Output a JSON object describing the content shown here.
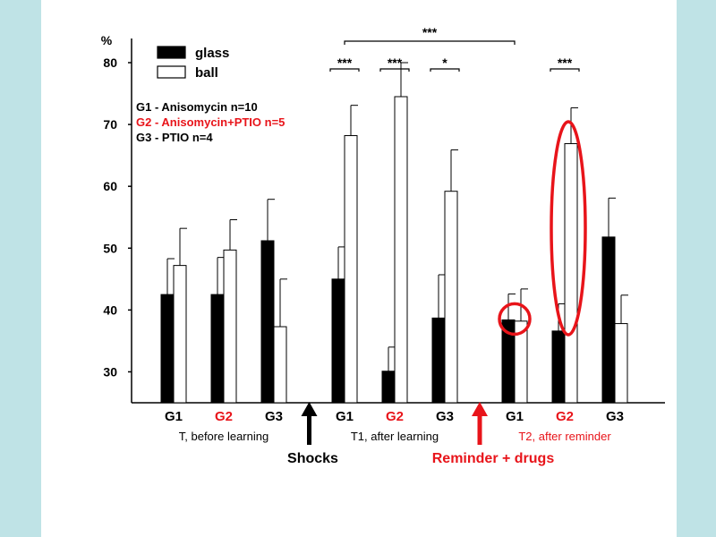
{
  "colors": {
    "background": "#bfe3e6",
    "panel": "#ffffff",
    "red": "#e8141a",
    "black": "#000000"
  },
  "chart_data": {
    "type": "bar",
    "ylabel": "%",
    "ylim": [
      25,
      80
    ],
    "yticks": [
      30,
      40,
      50,
      60,
      70,
      80
    ],
    "legend": [
      {
        "name": "glass",
        "fill": "black"
      },
      {
        "name": "ball",
        "fill": "white"
      }
    ],
    "info_lines": [
      {
        "text": "G1 - Anisomycin  n=10",
        "color": "black"
      },
      {
        "text": "G2 - Anisomycin+PTIO  n=5",
        "color": "red"
      },
      {
        "text": "G3 - PTIO  n=4",
        "color": "black"
      }
    ],
    "sessions": [
      {
        "name": "T, before learning",
        "color": "black",
        "groups": [
          {
            "label": "G1",
            "color": "black",
            "glass": 42.5,
            "glass_err": 5.8,
            "ball": 47.2,
            "ball_err": 6.0
          },
          {
            "label": "G2",
            "color": "red",
            "glass": 42.5,
            "glass_err": 6.0,
            "ball": 49.7,
            "ball_err": 4.9
          },
          {
            "label": "G3",
            "color": "black",
            "glass": 51.2,
            "glass_err": 6.7,
            "ball": 37.3,
            "ball_err": 7.7
          }
        ]
      },
      {
        "name": "T1, after learning",
        "color": "black",
        "groups": [
          {
            "label": "G1",
            "color": "black",
            "glass": 45.0,
            "glass_err": 5.2,
            "ball": 68.2,
            "ball_err": 4.9
          },
          {
            "label": "G2",
            "color": "red",
            "glass": 30.1,
            "glass_err": 3.9,
            "ball": 74.5,
            "ball_err": 5.5
          },
          {
            "label": "G3",
            "color": "black",
            "glass": 38.7,
            "glass_err": 7.0,
            "ball": 59.2,
            "ball_err": 6.7
          }
        ]
      },
      {
        "name": "T2, after reminder",
        "color": "red",
        "groups": [
          {
            "label": "G1",
            "color": "black",
            "glass": 38.4,
            "glass_err": 4.2,
            "ball": 38.2,
            "ball_err": 5.2
          },
          {
            "label": "G2",
            "color": "red",
            "glass": 36.6,
            "glass_err": 4.4,
            "ball": 66.9,
            "ball_err": 5.8
          },
          {
            "label": "G3",
            "color": "black",
            "glass": 51.8,
            "glass_err": 6.3,
            "ball": 37.8,
            "ball_err": 4.6
          }
        ]
      }
    ],
    "significance": [
      {
        "label": "***",
        "session": 1,
        "group": 0
      },
      {
        "label": "***",
        "session": 1,
        "group": 1
      },
      {
        "label": "*",
        "session": 1,
        "group": 2
      },
      {
        "label": "***",
        "session": 2,
        "group": 1
      },
      {
        "label": "***",
        "span_from": {
          "session": 1,
          "group": 0
        },
        "span_to": {
          "session": 2,
          "group": 0
        }
      }
    ],
    "events": [
      {
        "label": "Shocks",
        "color": "black",
        "between_sessions": [
          0,
          1
        ]
      },
      {
        "label": "Reminder + drugs",
        "color": "red",
        "between_sessions": [
          1,
          2
        ]
      }
    ],
    "highlights": [
      {
        "shape": "circle",
        "session": 2,
        "group": 0,
        "color": "red"
      },
      {
        "shape": "ellipse",
        "session": 2,
        "group": 1,
        "color": "red"
      }
    ]
  }
}
